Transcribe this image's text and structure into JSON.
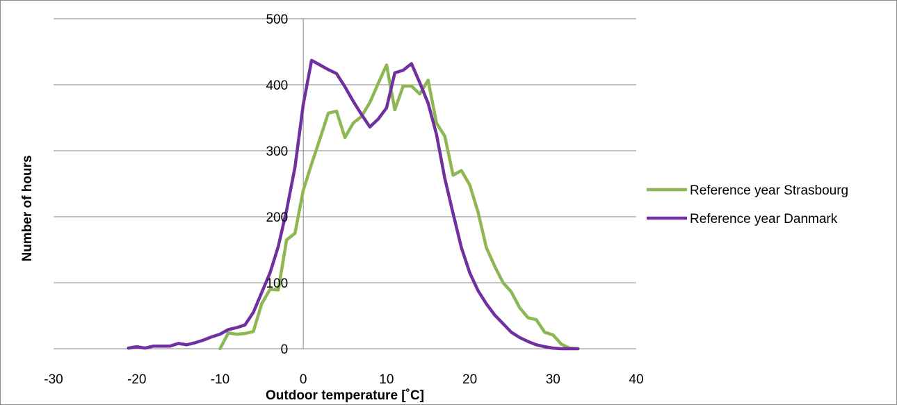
{
  "chart_data": {
    "type": "line",
    "title": "",
    "xlabel": "Outdoor temperature [˚C]",
    "ylabel": "Number of hours",
    "xlim": [
      -30,
      40
    ],
    "ylim": [
      0,
      500
    ],
    "x_ticks": [
      "-30",
      "-20",
      "-10",
      "0",
      "10",
      "20",
      "30",
      "40"
    ],
    "y_ticks": [
      "0",
      "100",
      "200",
      "300",
      "400",
      "500"
    ],
    "grid": "horizontal",
    "legend_position": "right",
    "series": [
      {
        "name": "Reference year Strasbourg",
        "color": "#8db753",
        "points": [
          [
            -10,
            0
          ],
          [
            -9,
            24
          ],
          [
            -8,
            22
          ],
          [
            -7,
            23
          ],
          [
            -6,
            26
          ],
          [
            -5,
            68
          ],
          [
            -4,
            90
          ],
          [
            -3,
            89
          ],
          [
            -2,
            165
          ],
          [
            -1,
            175
          ],
          [
            0,
            240
          ],
          [
            1,
            280
          ],
          [
            2,
            318
          ],
          [
            3,
            357
          ],
          [
            4,
            360
          ],
          [
            5,
            320
          ],
          [
            6,
            342
          ],
          [
            7,
            352
          ],
          [
            8,
            373
          ],
          [
            9,
            402
          ],
          [
            10,
            430
          ],
          [
            11,
            362
          ],
          [
            12,
            398
          ],
          [
            13,
            398
          ],
          [
            14,
            386
          ],
          [
            15,
            407
          ],
          [
            16,
            342
          ],
          [
            17,
            322
          ],
          [
            18,
            263
          ],
          [
            19,
            270
          ],
          [
            20,
            248
          ],
          [
            21,
            207
          ],
          [
            22,
            153
          ],
          [
            23,
            125
          ],
          [
            24,
            100
          ],
          [
            25,
            86
          ],
          [
            26,
            62
          ],
          [
            27,
            47
          ],
          [
            28,
            44
          ],
          [
            29,
            25
          ],
          [
            30,
            21
          ],
          [
            31,
            7
          ],
          [
            32,
            1
          ],
          [
            33,
            0
          ]
        ]
      },
      {
        "name": "Reference year Danmark",
        "color": "#7030a0",
        "points": [
          [
            -21,
            1
          ],
          [
            -20,
            3
          ],
          [
            -19,
            1
          ],
          [
            -18,
            4
          ],
          [
            -17,
            4
          ],
          [
            -16,
            4
          ],
          [
            -15,
            8
          ],
          [
            -14,
            6
          ],
          [
            -13,
            9
          ],
          [
            -12,
            13
          ],
          [
            -11,
            18
          ],
          [
            -10,
            22
          ],
          [
            -9,
            29
          ],
          [
            -8,
            32
          ],
          [
            -7,
            36
          ],
          [
            -6,
            55
          ],
          [
            -5,
            85
          ],
          [
            -4,
            115
          ],
          [
            -3,
            155
          ],
          [
            -2,
            210
          ],
          [
            -1,
            275
          ],
          [
            0,
            370
          ],
          [
            1,
            437
          ],
          [
            2,
            430
          ],
          [
            3,
            423
          ],
          [
            4,
            417
          ],
          [
            5,
            397
          ],
          [
            6,
            375
          ],
          [
            7,
            355
          ],
          [
            8,
            336
          ],
          [
            9,
            348
          ],
          [
            10,
            365
          ],
          [
            11,
            418
          ],
          [
            12,
            422
          ],
          [
            13,
            432
          ],
          [
            14,
            403
          ],
          [
            15,
            372
          ],
          [
            16,
            325
          ],
          [
            17,
            258
          ],
          [
            18,
            205
          ],
          [
            19,
            153
          ],
          [
            20,
            115
          ],
          [
            21,
            88
          ],
          [
            22,
            68
          ],
          [
            23,
            51
          ],
          [
            24,
            38
          ],
          [
            25,
            25
          ],
          [
            26,
            17
          ],
          [
            27,
            11
          ],
          [
            28,
            6
          ],
          [
            29,
            3
          ],
          [
            30,
            1
          ],
          [
            31,
            0
          ],
          [
            32,
            0
          ],
          [
            33,
            0
          ]
        ]
      }
    ]
  }
}
